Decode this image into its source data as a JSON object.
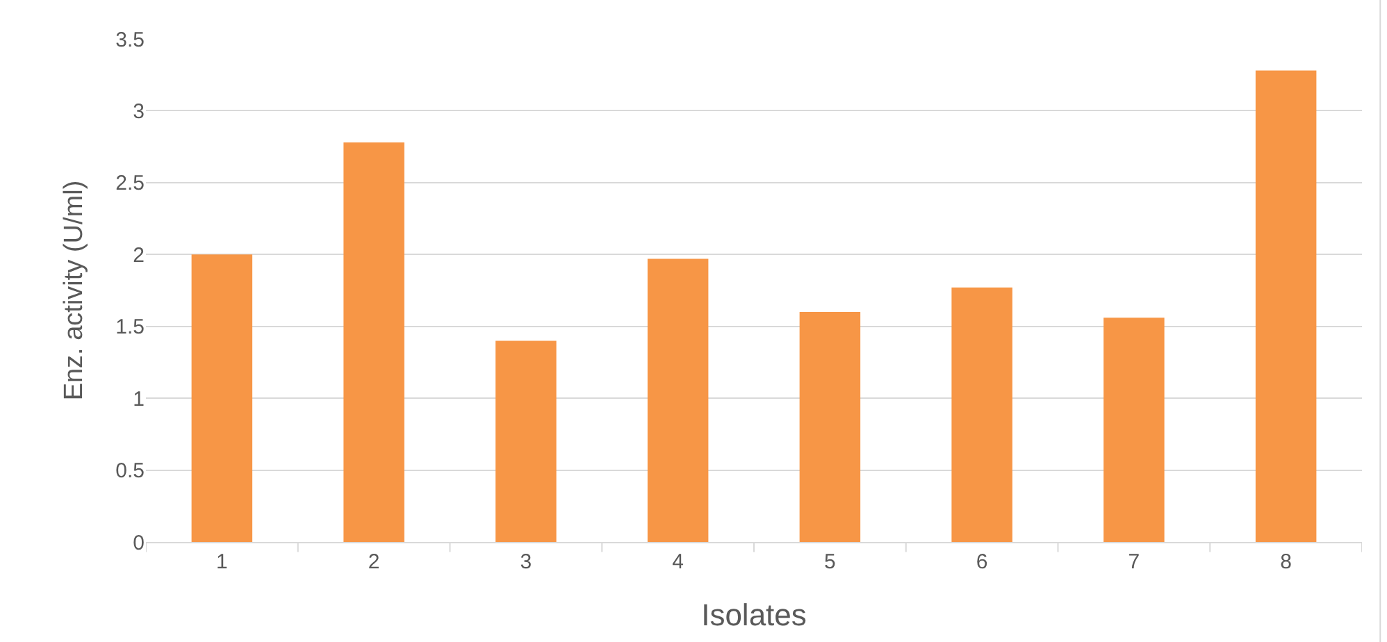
{
  "chart_data": {
    "type": "bar",
    "xlabel": "Isolates",
    "ylabel": "Enz. activity (U/ml)",
    "categories": [
      "1",
      "2",
      "3",
      "4",
      "5",
      "6",
      "7",
      "8"
    ],
    "values": [
      2.0,
      2.78,
      1.4,
      1.97,
      1.6,
      1.77,
      1.56,
      3.28
    ],
    "color": "#f79646",
    "ylim": [
      0,
      3.5
    ],
    "yticks": [
      0,
      0.5,
      1,
      1.5,
      2,
      2.5,
      3,
      3.5
    ],
    "grid": "y",
    "legend": false
  }
}
